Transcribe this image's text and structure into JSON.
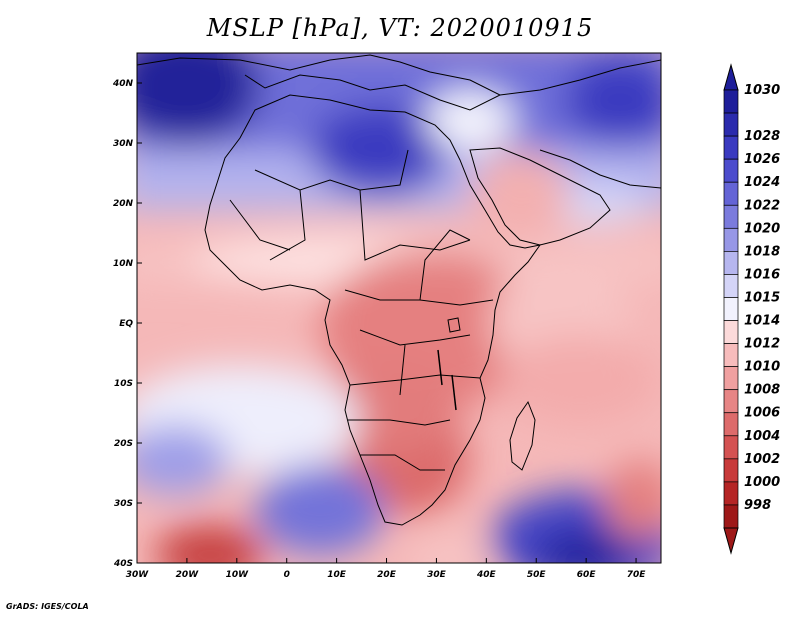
{
  "title": "MSLP [hPa], VT: 2020010915",
  "credit": "GrADS: IGES/COLA",
  "map": {
    "lon_range": [
      -30,
      75
    ],
    "lat_range": [
      -40,
      45
    ],
    "x_ticks": [
      {
        "lon": -30,
        "label": "30W"
      },
      {
        "lon": -20,
        "label": "20W"
      },
      {
        "lon": -10,
        "label": "10W"
      },
      {
        "lon": 0,
        "label": "0"
      },
      {
        "lon": 10,
        "label": "10E"
      },
      {
        "lon": 20,
        "label": "20E"
      },
      {
        "lon": 30,
        "label": "30E"
      },
      {
        "lon": 40,
        "label": "40E"
      },
      {
        "lon": 50,
        "label": "50E"
      },
      {
        "lon": 60,
        "label": "60E"
      },
      {
        "lon": 70,
        "label": "70E"
      }
    ],
    "y_ticks": [
      {
        "lat": 40,
        "label": "40N"
      },
      {
        "lat": 30,
        "label": "30N"
      },
      {
        "lat": 20,
        "label": "20N"
      },
      {
        "lat": 10,
        "label": "10N"
      },
      {
        "lat": 0,
        "label": "EQ"
      },
      {
        "lat": -10,
        "label": "10S"
      },
      {
        "lat": -20,
        "label": "20S"
      },
      {
        "lat": -30,
        "label": "30S"
      },
      {
        "lat": -40,
        "label": "40S"
      }
    ]
  },
  "colorbar": {
    "levels": [
      "1030",
      "1028",
      "1026",
      "1024",
      "1022",
      "1020",
      "1018",
      "1016",
      "1015",
      "1014",
      "1012",
      "1010",
      "1008",
      "1006",
      "1004",
      "1002",
      "1000",
      "998"
    ],
    "colors": [
      "#1e1e9a",
      "#2b2bad",
      "#3a3ac0",
      "#4c4ccd",
      "#6464d6",
      "#7b7bdd",
      "#9797e6",
      "#b6b6ef",
      "#d4d4f7",
      "#f2f2fd",
      "#fcdada",
      "#f7bcbc",
      "#f0a0a0",
      "#e78585",
      "#dd6b6b",
      "#d45252",
      "#c83a3a",
      "#b52525",
      "#9e1818"
    ]
  },
  "pressure_features": [
    {
      "kind": "high",
      "lon": -25,
      "lat": 38,
      "value": 1030
    },
    {
      "kind": "high",
      "lon": 62,
      "lat": 38,
      "value": 1028
    },
    {
      "kind": "high",
      "lon": 15,
      "lat": 28,
      "value": 1026
    },
    {
      "kind": "high",
      "lon": 60,
      "lat": -37,
      "value": 1028
    },
    {
      "kind": "high",
      "lon": 12,
      "lat": -33,
      "value": 1022
    },
    {
      "kind": "high",
      "lon": -22,
      "lat": -22,
      "value": 1018
    },
    {
      "kind": "high",
      "lon": 42,
      "lat": 36,
      "value": 1016
    },
    {
      "kind": "low",
      "lon": -12,
      "lat": -40,
      "value": 1002
    },
    {
      "kind": "low",
      "lon": 27,
      "lat": -22,
      "value": 1006
    },
    {
      "kind": "low",
      "lon": 25,
      "lat": 0,
      "value": 1007
    },
    {
      "kind": "low",
      "lon": 72,
      "lat": -32,
      "value": 1006
    },
    {
      "kind": "low",
      "lon": 47,
      "lat": 22,
      "value": 1011
    }
  ]
}
